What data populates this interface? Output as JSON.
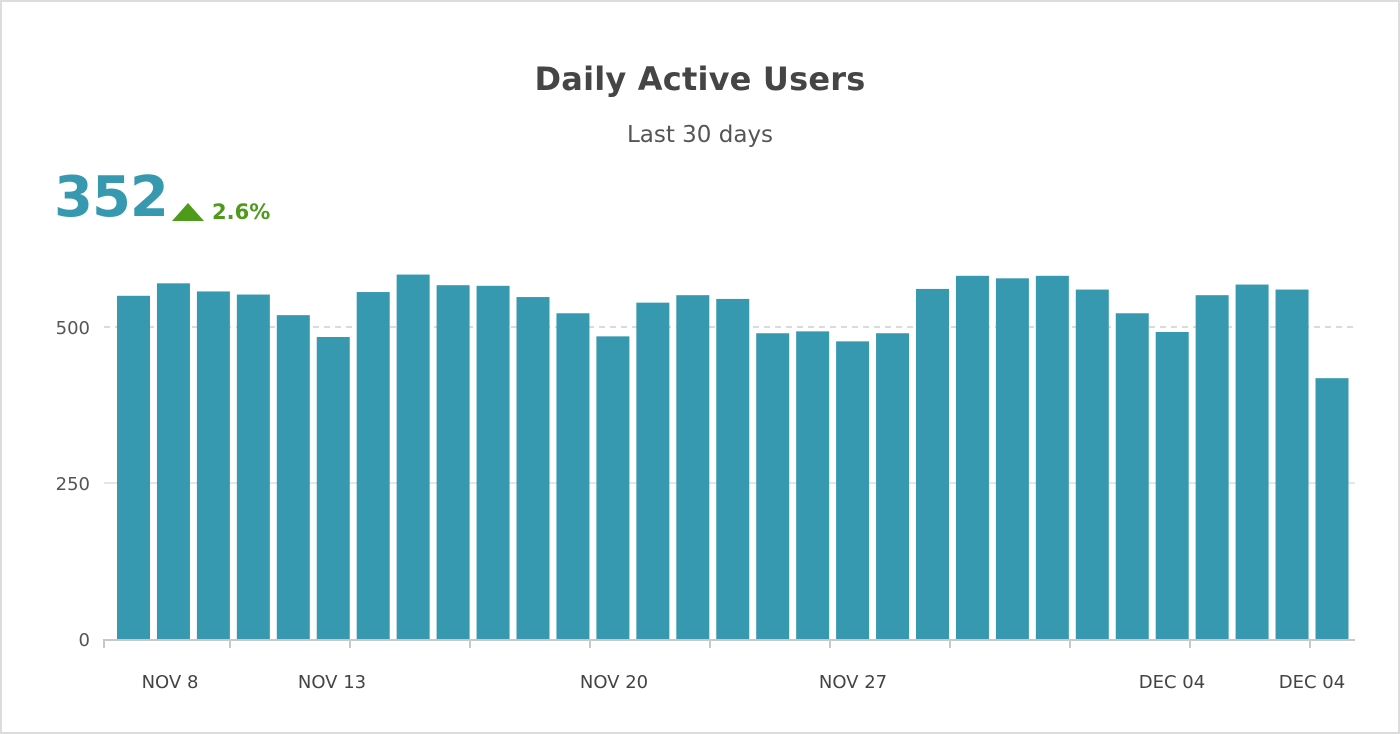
{
  "header": {
    "title": "Daily Active Users",
    "subtitle": "Last 30 days"
  },
  "kpi": {
    "value": "352",
    "change": "2.6%",
    "change_direction": "up",
    "change_icon": "triangle-up-icon",
    "change_color": "#4e9a1b",
    "value_color": "#3799b0"
  },
  "chart_data": {
    "type": "bar",
    "title": "Daily Active Users",
    "subtitle": "Last 30 days",
    "bar_color": "#3799b0",
    "ylim": [
      0,
      550
    ],
    "y_ticks": [
      0,
      250,
      500
    ],
    "reference_line": 500,
    "grid": true,
    "x_tick_labels": [
      "NOV 8",
      "NOV 13",
      "NOV 20",
      "NOV 27",
      "DEC 04",
      "DEC 04"
    ],
    "values": [
      550,
      570,
      557,
      552,
      519,
      484,
      556,
      584,
      567,
      566,
      548,
      522,
      485,
      539,
      551,
      545,
      490,
      493,
      477,
      490,
      561,
      582,
      578,
      582,
      560,
      522,
      492,
      551,
      568,
      560,
      418
    ]
  }
}
